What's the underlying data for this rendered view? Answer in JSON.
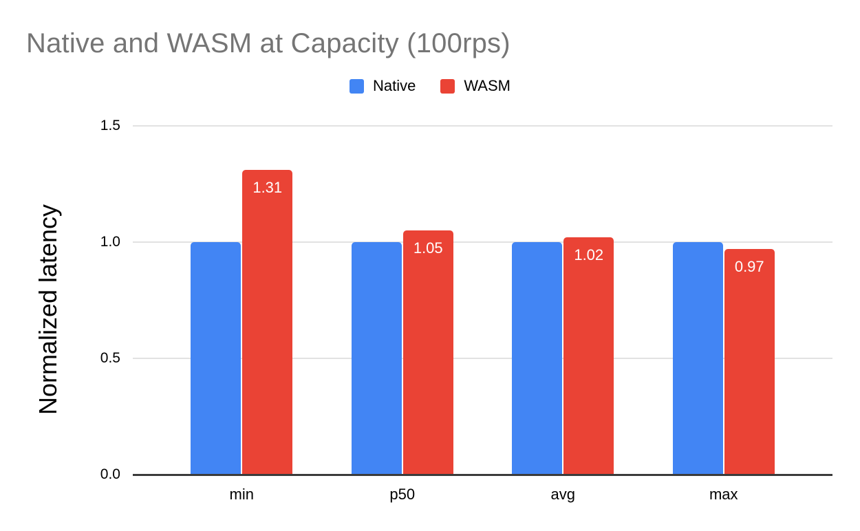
{
  "title": "Native and WASM at Capacity (100rps)",
  "colors": {
    "title_text": "#757575",
    "axis_text": "#000000",
    "gridline": "#e2e2e2",
    "axis_line": "#3b3b3b",
    "background": "#ffffff",
    "data_label": "#ffffff",
    "native_blue": "#4285F4",
    "wasm_red": "#EA4335"
  },
  "legend": {
    "position": "top",
    "items": [
      {
        "label": "Native",
        "color": "#4285F4"
      },
      {
        "label": "WASM",
        "color": "#EA4335"
      }
    ]
  },
  "chart_data": {
    "type": "bar",
    "title": "Native and WASM at Capacity (100rps)",
    "categories": [
      "min",
      "p50",
      "avg",
      "max"
    ],
    "series": [
      {
        "name": "Native",
        "color": "#4285F4",
        "values": [
          1.0,
          1.0,
          1.0,
          1.0
        ],
        "data_labels": [
          "",
          "",
          "",
          ""
        ]
      },
      {
        "name": "WASM",
        "color": "#EA4335",
        "values": [
          1.31,
          1.05,
          1.02,
          0.97
        ],
        "data_labels": [
          "1.31",
          "1.05",
          "1.02",
          "0.97"
        ]
      }
    ],
    "xlabel": "",
    "ylabel": "Normalized latency",
    "ylim": [
      0,
      1.5
    ],
    "yticks": [
      {
        "value": 0.0,
        "label": "0.0"
      },
      {
        "value": 0.5,
        "label": "0.5"
      },
      {
        "value": 1.0,
        "label": "1.0"
      },
      {
        "value": 1.5,
        "label": "1.5"
      }
    ],
    "grid": true,
    "legend_position": "top",
    "data_label_color": "#ffffff"
  }
}
